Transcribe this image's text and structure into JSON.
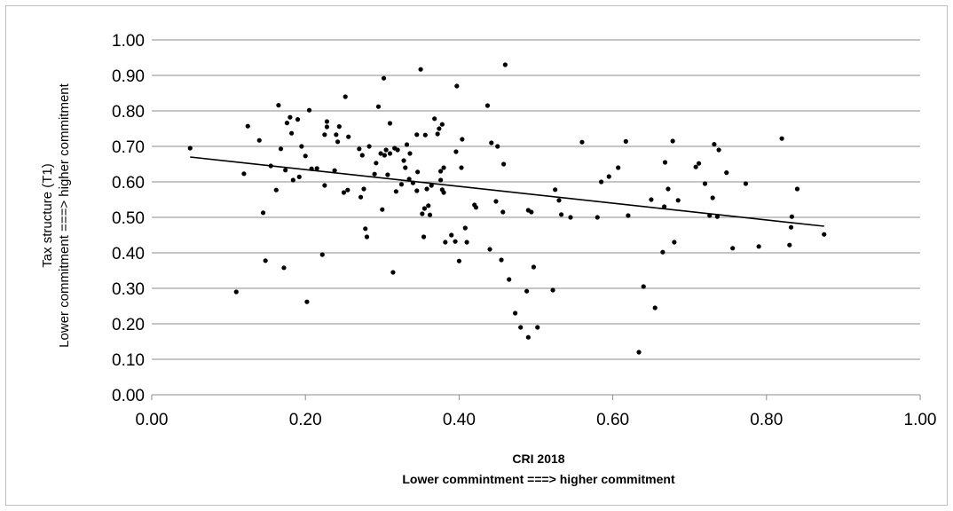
{
  "chart_data": {
    "type": "scatter",
    "title": "",
    "xlabel": "CRI 2018",
    "xlabel_sub": "Lower commintment ===> higher commitment",
    "ylabel": "Tax structure (T1)",
    "ylabel_sub": "Lower commitment ===> higher commitment",
    "xlim": [
      0,
      1
    ],
    "ylim": [
      0,
      1
    ],
    "x_ticks": [
      "0.00",
      "0.20",
      "0.40",
      "0.60",
      "0.80",
      "1.00"
    ],
    "y_ticks": [
      "0.00",
      "0.10",
      "0.20",
      "0.30",
      "0.40",
      "0.50",
      "0.60",
      "0.70",
      "0.80",
      "0.90",
      "1.00"
    ],
    "grid": "horizontal",
    "legend": "none",
    "point_color": "#000000",
    "trendline": {
      "type": "linear",
      "x": [
        0.05,
        0.875
      ],
      "y": [
        0.67,
        0.475
      ],
      "color": "#000000"
    },
    "points": [
      [
        0.05,
        0.695
      ],
      [
        0.11,
        0.29
      ],
      [
        0.12,
        0.623
      ],
      [
        0.125,
        0.757
      ],
      [
        0.14,
        0.717
      ],
      [
        0.145,
        0.513
      ],
      [
        0.148,
        0.378
      ],
      [
        0.155,
        0.645
      ],
      [
        0.162,
        0.577
      ],
      [
        0.165,
        0.816
      ],
      [
        0.168,
        0.693
      ],
      [
        0.172,
        0.358
      ],
      [
        0.174,
        0.633
      ],
      [
        0.176,
        0.766
      ],
      [
        0.18,
        0.782
      ],
      [
        0.182,
        0.737
      ],
      [
        0.184,
        0.605
      ],
      [
        0.19,
        0.776
      ],
      [
        0.192,
        0.614
      ],
      [
        0.195,
        0.7
      ],
      [
        0.2,
        0.673
      ],
      [
        0.202,
        0.262
      ],
      [
        0.205,
        0.802
      ],
      [
        0.208,
        0.637
      ],
      [
        0.215,
        0.638
      ],
      [
        0.222,
        0.395
      ],
      [
        0.225,
        0.59
      ],
      [
        0.225,
        0.733
      ],
      [
        0.228,
        0.77
      ],
      [
        0.228,
        0.755
      ],
      [
        0.238,
        0.632
      ],
      [
        0.24,
        0.733
      ],
      [
        0.242,
        0.713
      ],
      [
        0.244,
        0.756
      ],
      [
        0.25,
        0.57
      ],
      [
        0.252,
        0.84
      ],
      [
        0.255,
        0.577
      ],
      [
        0.256,
        0.727
      ],
      [
        0.27,
        0.693
      ],
      [
        0.272,
        0.557
      ],
      [
        0.274,
        0.675
      ],
      [
        0.276,
        0.58
      ],
      [
        0.278,
        0.468
      ],
      [
        0.28,
        0.445
      ],
      [
        0.283,
        0.7
      ],
      [
        0.29,
        0.622
      ],
      [
        0.292,
        0.653
      ],
      [
        0.295,
        0.812
      ],
      [
        0.298,
        0.68
      ],
      [
        0.3,
        0.522
      ],
      [
        0.302,
        0.892
      ],
      [
        0.303,
        0.675
      ],
      [
        0.305,
        0.69
      ],
      [
        0.307,
        0.62
      ],
      [
        0.31,
        0.765
      ],
      [
        0.31,
        0.68
      ],
      [
        0.314,
        0.345
      ],
      [
        0.316,
        0.695
      ],
      [
        0.318,
        0.573
      ],
      [
        0.32,
        0.69
      ],
      [
        0.325,
        0.593
      ],
      [
        0.328,
        0.66
      ],
      [
        0.33,
        0.64
      ],
      [
        0.332,
        0.705
      ],
      [
        0.335,
        0.608
      ],
      [
        0.336,
        0.68
      ],
      [
        0.34,
        0.597
      ],
      [
        0.345,
        0.575
      ],
      [
        0.345,
        0.733
      ],
      [
        0.346,
        0.628
      ],
      [
        0.35,
        0.917
      ],
      [
        0.352,
        0.51
      ],
      [
        0.354,
        0.445
      ],
      [
        0.355,
        0.525
      ],
      [
        0.356,
        0.732
      ],
      [
        0.358,
        0.58
      ],
      [
        0.36,
        0.533
      ],
      [
        0.362,
        0.507
      ],
      [
        0.364,
        0.59
      ],
      [
        0.368,
        0.778
      ],
      [
        0.372,
        0.735
      ],
      [
        0.374,
        0.75
      ],
      [
        0.376,
        0.63
      ],
      [
        0.376,
        0.605
      ],
      [
        0.378,
        0.578
      ],
      [
        0.378,
        0.762
      ],
      [
        0.38,
        0.57
      ],
      [
        0.38,
        0.64
      ],
      [
        0.382,
        0.43
      ],
      [
        0.39,
        0.45
      ],
      [
        0.395,
        0.432
      ],
      [
        0.396,
        0.685
      ],
      [
        0.397,
        0.87
      ],
      [
        0.4,
        0.377
      ],
      [
        0.403,
        0.64
      ],
      [
        0.404,
        0.72
      ],
      [
        0.408,
        0.47
      ],
      [
        0.41,
        0.43
      ],
      [
        0.42,
        0.535
      ],
      [
        0.422,
        0.528
      ],
      [
        0.437,
        0.815
      ],
      [
        0.44,
        0.41
      ],
      [
        0.442,
        0.71
      ],
      [
        0.448,
        0.545
      ],
      [
        0.45,
        0.7
      ],
      [
        0.455,
        0.38
      ],
      [
        0.457,
        0.515
      ],
      [
        0.458,
        0.65
      ],
      [
        0.46,
        0.93
      ],
      [
        0.465,
        0.325
      ],
      [
        0.473,
        0.23
      ],
      [
        0.48,
        0.19
      ],
      [
        0.488,
        0.292
      ],
      [
        0.49,
        0.162
      ],
      [
        0.49,
        0.52
      ],
      [
        0.494,
        0.515
      ],
      [
        0.497,
        0.36
      ],
      [
        0.502,
        0.19
      ],
      [
        0.522,
        0.295
      ],
      [
        0.525,
        0.578
      ],
      [
        0.53,
        0.548
      ],
      [
        0.533,
        0.508
      ],
      [
        0.545,
        0.5
      ],
      [
        0.56,
        0.712
      ],
      [
        0.58,
        0.5
      ],
      [
        0.585,
        0.6
      ],
      [
        0.595,
        0.615
      ],
      [
        0.607,
        0.64
      ],
      [
        0.617,
        0.714
      ],
      [
        0.62,
        0.505
      ],
      [
        0.634,
        0.12
      ],
      [
        0.64,
        0.305
      ],
      [
        0.65,
        0.55
      ],
      [
        0.655,
        0.245
      ],
      [
        0.665,
        0.402
      ],
      [
        0.667,
        0.53
      ],
      [
        0.668,
        0.655
      ],
      [
        0.672,
        0.58
      ],
      [
        0.678,
        0.715
      ],
      [
        0.68,
        0.43
      ],
      [
        0.685,
        0.548
      ],
      [
        0.708,
        0.642
      ],
      [
        0.712,
        0.652
      ],
      [
        0.72,
        0.595
      ],
      [
        0.726,
        0.505
      ],
      [
        0.73,
        0.555
      ],
      [
        0.732,
        0.706
      ],
      [
        0.736,
        0.502
      ],
      [
        0.738,
        0.69
      ],
      [
        0.748,
        0.626
      ],
      [
        0.756,
        0.413
      ],
      [
        0.773,
        0.595
      ],
      [
        0.79,
        0.418
      ],
      [
        0.82,
        0.722
      ],
      [
        0.83,
        0.422
      ],
      [
        0.832,
        0.472
      ],
      [
        0.833,
        0.502
      ],
      [
        0.84,
        0.58
      ],
      [
        0.875,
        0.452
      ]
    ]
  }
}
